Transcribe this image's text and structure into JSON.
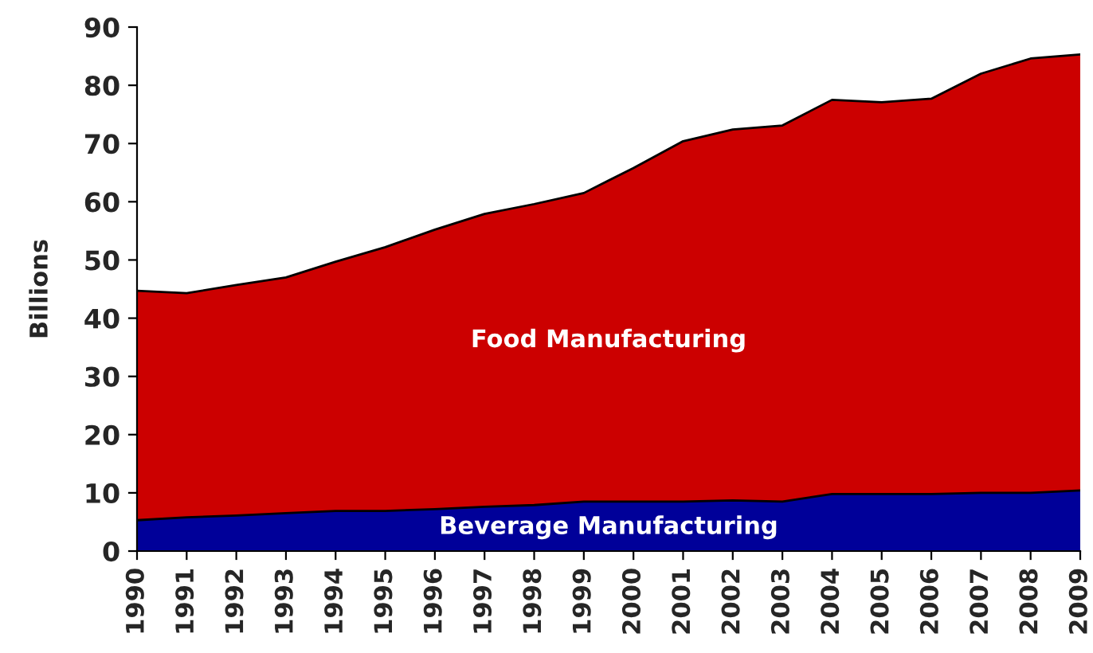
{
  "chart_data": {
    "type": "area",
    "stacked": true,
    "ylabel": "Billions",
    "categories": [
      "1990",
      "1991",
      "1992",
      "1993",
      "1994",
      "1995",
      "1996",
      "1997",
      "1998",
      "1999",
      "2000",
      "2001",
      "2002",
      "2003",
      "2004",
      "2005",
      "2006",
      "2007",
      "2008",
      "2009"
    ],
    "series": [
      {
        "name": "Beverage Manufacturing",
        "color": "#000099",
        "values": [
          5.3,
          5.8,
          6.1,
          6.5,
          6.9,
          6.9,
          7.2,
          7.6,
          7.9,
          8.5,
          8.5,
          8.5,
          8.7,
          8.5,
          9.8,
          9.8,
          9.8,
          10,
          10,
          10.4
        ]
      },
      {
        "name": "Food Manufacturing",
        "color": "#cc0000",
        "values": [
          39.4,
          38.5,
          39.6,
          40.5,
          42.8,
          45.3,
          48.0,
          50.3,
          51.7,
          53.0,
          57.3,
          61.9,
          63.7,
          64.6,
          67.7,
          67.3,
          67.9,
          72.0,
          74.6,
          74.9
        ]
      }
    ],
    "ylim": [
      0,
      90
    ],
    "yticks": [
      0,
      10,
      20,
      30,
      40,
      50,
      60,
      70,
      80,
      90
    ],
    "grid": false,
    "legend": false
  }
}
